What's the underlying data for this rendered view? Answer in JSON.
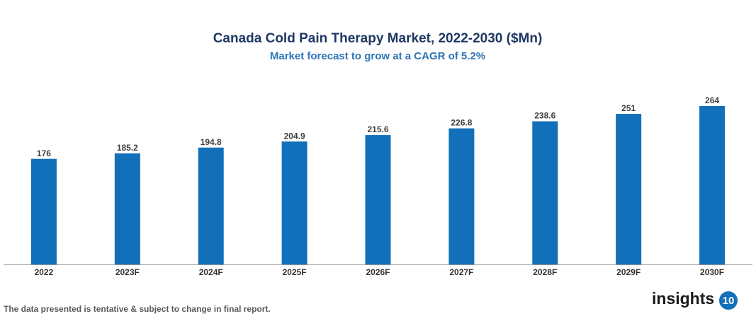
{
  "chart_data": {
    "type": "bar",
    "title": "Canada Cold Pain Therapy Market, 2022-2030 ($Mn)",
    "subtitle": "Market forecast to grow at a CAGR of 5.2%",
    "categories": [
      "2022",
      "2023F",
      "2024F",
      "2025F",
      "2026F",
      "2027F",
      "2028F",
      "2029F",
      "2030F"
    ],
    "values": [
      176,
      185.2,
      194.8,
      204.9,
      215.6,
      226.8,
      238.6,
      251,
      264
    ],
    "color": "#1170b9"
  },
  "footnote": "The data presented is tentative & subject to change in final report.",
  "logo": {
    "text": "insights",
    "number": "10"
  }
}
